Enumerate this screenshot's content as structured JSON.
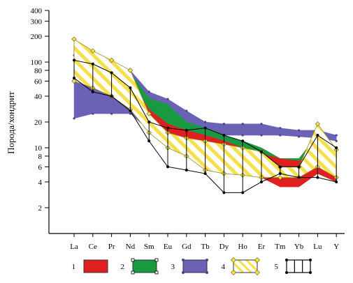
{
  "chart_data": {
    "type": "area",
    "title": "",
    "ylabel": "Порода/хондрит",
    "xlabel": "",
    "yscale": "log",
    "ylim": [
      1,
      450
    ],
    "grid": false,
    "categories": [
      "La",
      "Ce",
      "Pr",
      "Nd",
      "Sm",
      "Eu",
      "Gd",
      "Tb",
      "Dy",
      "Ho",
      "Er",
      "Tm",
      "Yb",
      "Lu",
      "Y"
    ],
    "y_ticks": [
      2,
      4,
      6,
      8,
      10,
      20,
      40,
      60,
      80,
      100,
      200,
      300,
      400
    ],
    "legend_position": "bottom",
    "series": [
      {
        "name": "1",
        "color": "#e02020",
        "pattern": "solid",
        "upper": [
          160,
          110,
          95,
          65,
          28,
          19,
          16,
          14,
          12,
          10,
          8.5,
          7.5,
          7,
          9,
          7
        ],
        "lower": [
          75,
          55,
          45,
          35,
          18,
          13,
          11,
          9,
          7,
          5.5,
          4.5,
          3.5,
          3.5,
          5,
          4
        ]
      },
      {
        "name": "2",
        "color": "#1a9a40",
        "pattern": "solid",
        "upper": [
          110,
          95,
          90,
          75,
          38,
          32,
          20,
          17,
          14,
          12,
          10,
          7.5,
          7.5,
          14,
          10
        ],
        "lower": [
          70,
          55,
          48,
          40,
          20,
          17,
          14,
          11,
          9,
          8,
          7,
          6.5,
          6.5,
          8,
          6.5
        ]
      },
      {
        "name": "3",
        "color": "#6a62b5",
        "pattern": "solid",
        "upper": [
          120,
          105,
          100,
          80,
          45,
          37,
          27,
          20,
          19,
          19,
          19,
          17,
          16,
          16,
          14
        ],
        "lower": [
          22,
          25,
          25,
          25,
          16,
          15,
          14,
          14,
          14,
          14,
          14,
          14,
          13.5,
          13,
          12
        ]
      },
      {
        "name": "4",
        "color": "#f4e98a",
        "pattern": "hatch-yellow",
        "upper": [
          185,
          135,
          105,
          80,
          25,
          15,
          13,
          12,
          11,
          10,
          9,
          6,
          6,
          19,
          9.5
        ],
        "lower": [
          60,
          50,
          40,
          28,
          15,
          10,
          8,
          5.5,
          5,
          4.8,
          4.5,
          4.5,
          4.5,
          6,
          4.5
        ]
      },
      {
        "name": "5",
        "color": "#000000",
        "pattern": "vertical-bars",
        "upper": [
          105,
          95,
          75,
          50,
          20,
          17,
          16,
          17,
          14,
          12,
          9,
          6,
          6,
          14,
          10
        ],
        "lower": [
          65,
          45,
          40,
          27,
          12,
          6,
          5.5,
          5,
          3,
          3,
          4,
          5,
          4.5,
          4.5,
          4
        ]
      }
    ]
  }
}
